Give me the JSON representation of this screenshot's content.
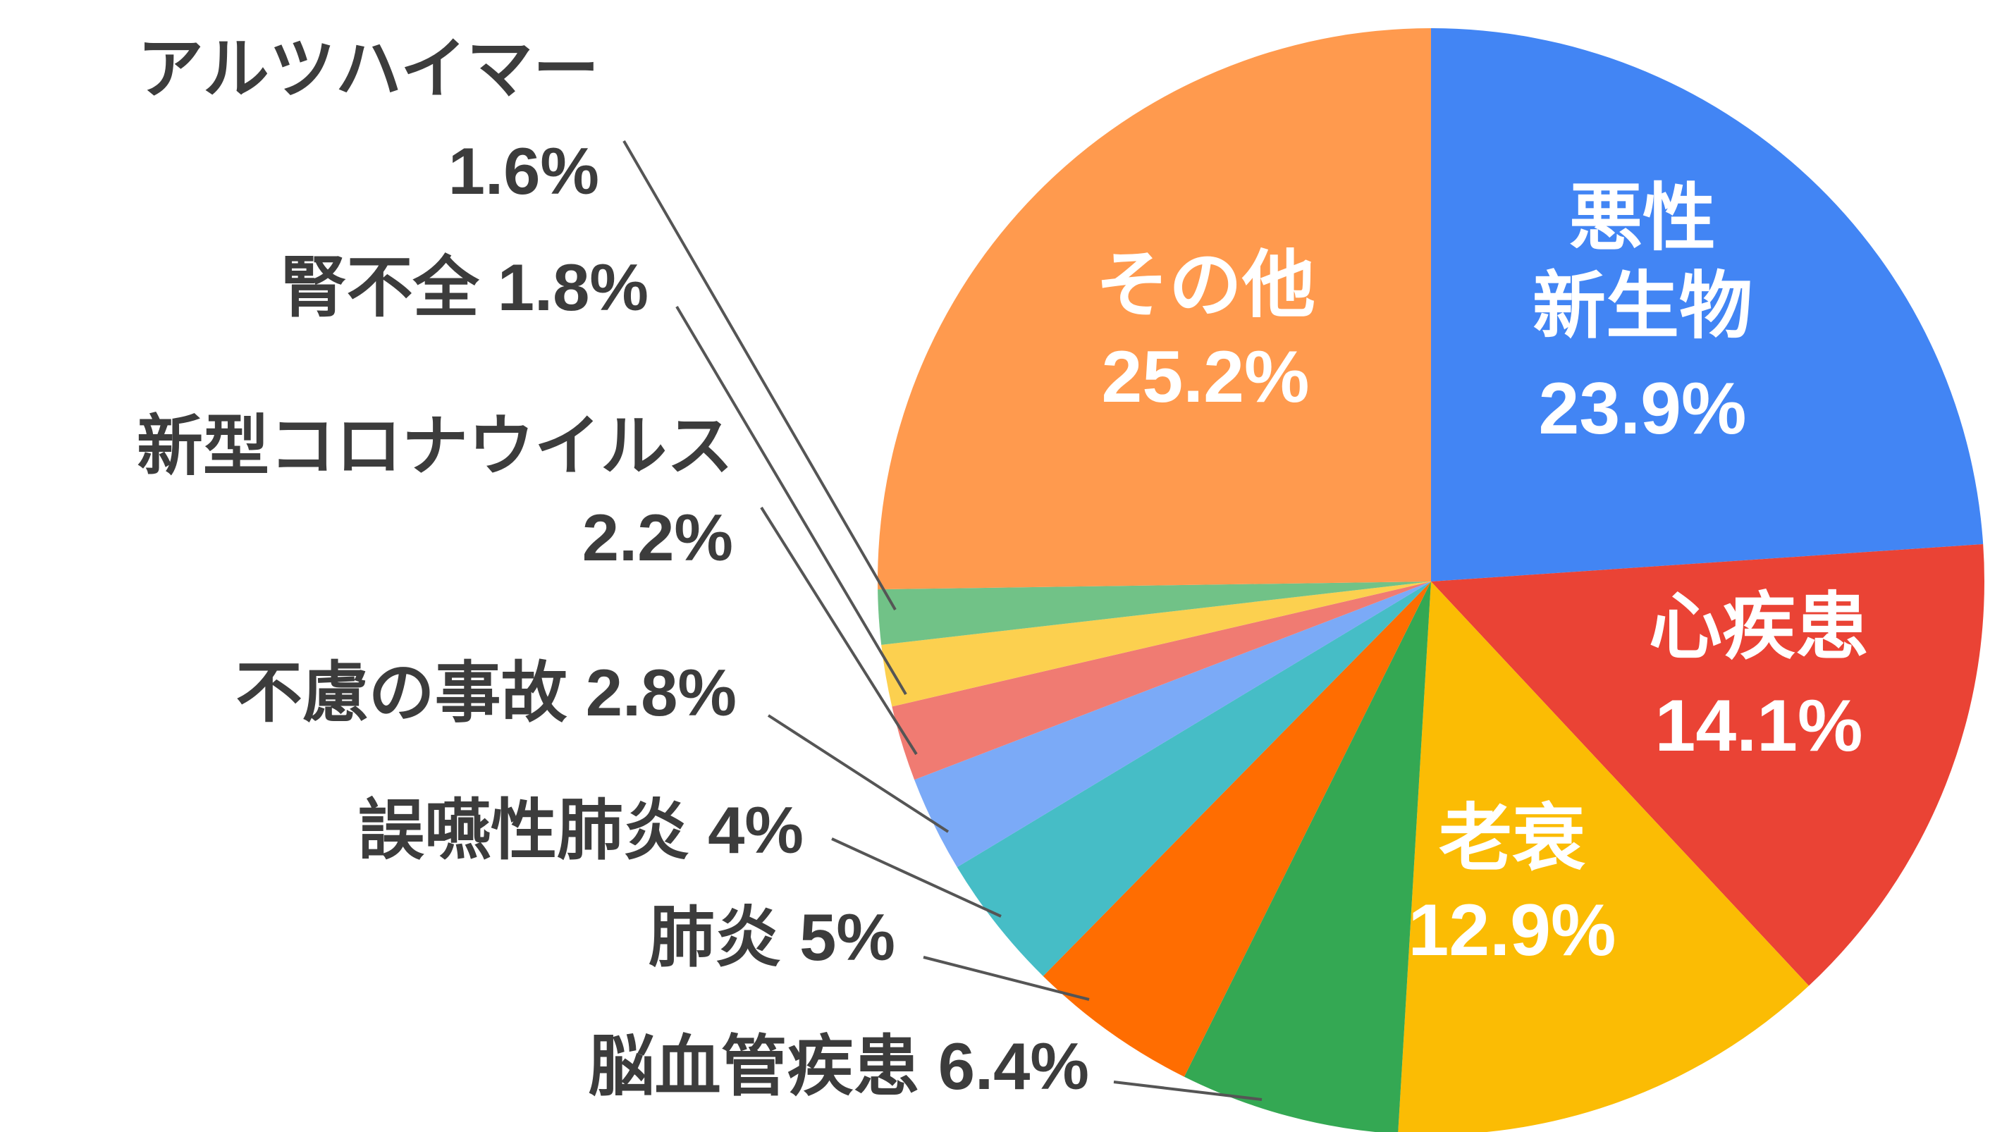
{
  "chart_data": {
    "type": "pie",
    "start_angle_deg": 0,
    "direction": "clockwise",
    "slices": [
      {
        "label": "悪性\n新生物",
        "value": 23.9,
        "display": "23.9%",
        "color": "#4285F4",
        "label_position": "inside"
      },
      {
        "label": "心疾患",
        "value": 14.1,
        "display": "14.1%",
        "color": "#EA4335",
        "label_position": "inside"
      },
      {
        "label": "老衰",
        "value": 12.9,
        "display": "12.9%",
        "color": "#FBBC04",
        "label_position": "inside"
      },
      {
        "label": "脳血管疾患",
        "value": 6.4,
        "display": "6.4%",
        "color": "#34A853",
        "label_position": "outside"
      },
      {
        "label": "肺炎",
        "value": 5,
        "display": "5%",
        "color": "#FF6D01",
        "label_position": "outside"
      },
      {
        "label": "誤嚥性肺炎",
        "value": 4,
        "display": "4%",
        "color": "#46BDC6",
        "label_position": "outside"
      },
      {
        "label": "不慮の事故",
        "value": 2.8,
        "display": "2.8%",
        "color": "#7BAAF7",
        "label_position": "outside"
      },
      {
        "label": "新型コロナウイルス",
        "value": 2.2,
        "display": "2.2%",
        "color": "#F07B72",
        "label_position": "outside"
      },
      {
        "label": "腎不全",
        "value": 1.8,
        "display": "1.8%",
        "color": "#FCD04F",
        "label_position": "outside"
      },
      {
        "label": "アルツハイマー",
        "value": 1.6,
        "display": "1.6%",
        "color": "#71C287",
        "label_position": "outside"
      },
      {
        "label": "その他",
        "value": 25.2,
        "display": "25.2%",
        "color": "#FF9A4E",
        "label_position": "inside"
      }
    ]
  }
}
